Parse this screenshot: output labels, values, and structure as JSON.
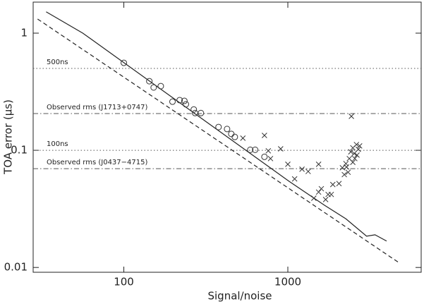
{
  "chart_data": {
    "type": "scatter",
    "x_label": "Signal/noise",
    "y_label": "TOA error (μs)",
    "log_x": true,
    "log_y": true,
    "xlim": [
      28,
      6500
    ],
    "ylim": [
      0.0091,
      1.84
    ],
    "xticks": [
      100,
      1000
    ],
    "yticks": [
      0.01,
      0.1,
      1
    ],
    "reference_lines": [
      {
        "text": "500ns",
        "y": 0.5,
        "style": "dotted"
      },
      {
        "text": "Observed rms (J1713+0747)",
        "y": 0.206,
        "style": "dashdot"
      },
      {
        "text": "100ns",
        "y": 0.1,
        "style": "dotted"
      },
      {
        "text": "Observed rms (J0437−4715)",
        "y": 0.0697,
        "style": "dashdot"
      }
    ],
    "lines": [
      {
        "style": "solid",
        "color": "#222",
        "x": [
          33.6,
          56.2,
          1024,
          1670,
          2260,
          3020,
          3400,
          4000
        ],
        "y": [
          1.52,
          1.0,
          0.054,
          0.034,
          0.026,
          0.0185,
          0.019,
          0.0168
        ]
      },
      {
        "style": "dashed",
        "color": "#222",
        "x": [
          29.8,
          4750
        ],
        "y": [
          1.32,
          0.011
        ]
      }
    ],
    "series": [
      {
        "marker": "circle",
        "color": "#333",
        "x": [
          100,
          143,
          152,
          168,
          198,
          219,
          234,
          239,
          267,
          272,
          295,
          378,
          426,
          452,
          475,
          590,
          632,
          720
        ],
        "values": [
          0.558,
          0.389,
          0.344,
          0.353,
          0.26,
          0.268,
          0.264,
          0.247,
          0.223,
          0.208,
          0.208,
          0.158,
          0.152,
          0.138,
          0.13,
          0.101,
          0.101,
          0.088
        ]
      },
      {
        "marker": "cross",
        "color": "#333",
        "x": [
          532,
          720,
          904,
          760,
          784,
          1000,
          1100,
          1220,
          1330,
          1540,
          1540,
          1700,
          1840,
          1880,
          2150,
          2260,
          2370,
          2420,
          2490,
          2540,
          2620,
          2690,
          2440,
          2210,
          2330,
          2560,
          2740,
          2050,
          1600,
          1760,
          1440,
          2280,
          2640,
          2490
        ],
        "values": [
          0.127,
          0.134,
          0.103,
          0.099,
          0.085,
          0.076,
          0.057,
          0.069,
          0.066,
          0.076,
          0.044,
          0.038,
          0.042,
          0.051,
          0.071,
          0.077,
          0.085,
          0.097,
          0.105,
          0.094,
          0.112,
          0.102,
          0.195,
          0.062,
          0.065,
          0.085,
          0.109,
          0.052,
          0.047,
          0.042,
          0.039,
          0.072,
          0.091,
          0.079
        ]
      }
    ]
  }
}
